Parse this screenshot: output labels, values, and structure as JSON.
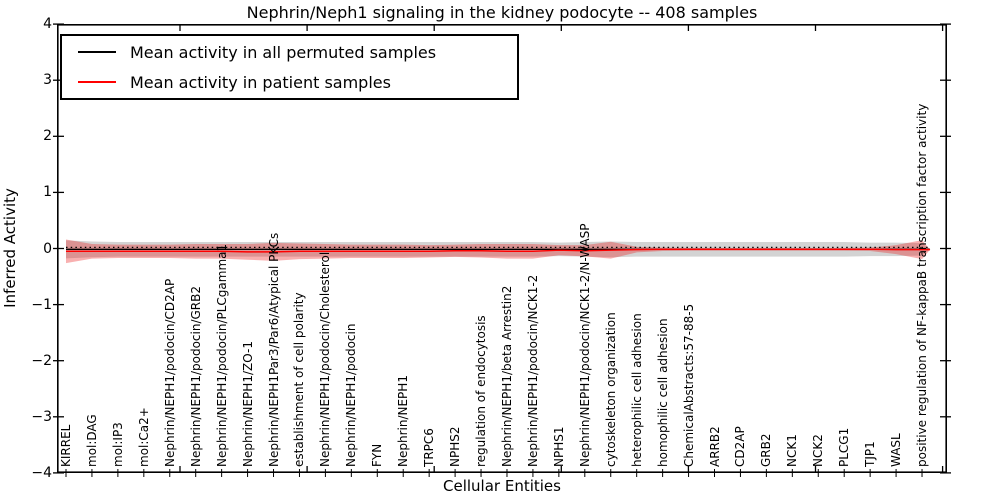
{
  "title": "Nephrin/Neph1 signaling in the kidney podocyte -- 408 samples",
  "axes": {
    "ylabel": "Inferred Activity",
    "xlabel": "Cellular Entities",
    "ylim": [
      -4,
      4
    ],
    "yticks": [
      {
        "value": 4,
        "label": "4"
      },
      {
        "value": 3,
        "label": "3"
      },
      {
        "value": 2,
        "label": "2"
      },
      {
        "value": 1,
        "label": "1"
      },
      {
        "value": 0,
        "label": "0"
      },
      {
        "value": -1,
        "label": "−1"
      },
      {
        "value": -2,
        "label": "−2"
      },
      {
        "value": -3,
        "label": "−3"
      },
      {
        "value": -4,
        "label": "−4"
      }
    ],
    "grid": false
  },
  "legend": {
    "position": "upper-left",
    "items": [
      {
        "label": "Mean activity in all permuted samples",
        "color": "#000000"
      },
      {
        "label": "Mean activity in patient samples",
        "color": "#ff0000"
      }
    ]
  },
  "chart_data": {
    "type": "line",
    "title": "Nephrin/Neph1 signaling in the kidney podocyte -- 408 samples",
    "xlabel": "Cellular Entities",
    "ylabel": "Inferred Activity",
    "ylim": [
      -4,
      4
    ],
    "legend_position": "upper-left",
    "grid": false,
    "categories": [
      "KIRREL",
      "mol:DAG",
      "mol:IP3",
      "mol:Ca2+",
      "Nephrin/NEPH1/podocin/CD2AP",
      "Nephrin/NEPH1/podocin/GRB2",
      "Nephrin/NEPH1/podocin/PLCgamma1",
      "Nephrin/NEPH1/ZO-1",
      "Nephrin/NEPH1Par3/Par6/Atypical PKCs",
      "establishment of cell polarity",
      "Nephrin/NEPH1/podocin/Cholesterol",
      "Nephrin/NEPH1/podocin",
      "FYN",
      "Nephrin/NEPH1",
      "TRPC6",
      "NPHS2",
      "regulation of endocytosis",
      "Nephrin/NEPH1/beta Arrestin2",
      "Nephrin/NEPH1/podocin/NCK1-2",
      "NPHS1",
      "Nephrin/NEPH1/podocin/NCK1-2/N-WASP",
      "cytoskeleton organization",
      "heterophilic cell adhesion",
      "homophilic cell adhesion",
      "ChemicalAbstracts:57-88-5",
      "ARRB2",
      "CD2AP",
      "GRB2",
      "NCK1",
      "NCK2",
      "PLCG1",
      "TJP1",
      "WASL",
      "positive regulation of NF-kappaB transcription factor activity"
    ],
    "series": [
      {
        "name": "Mean activity in all permuted samples",
        "line_color": "#000000",
        "band_fill": "rgba(140,140,140,0.38)",
        "values": [
          -0.015,
          -0.015,
          -0.015,
          -0.015,
          -0.015,
          -0.015,
          -0.015,
          -0.015,
          -0.015,
          -0.015,
          -0.015,
          -0.015,
          -0.015,
          -0.015,
          -0.015,
          -0.015,
          -0.015,
          -0.015,
          -0.015,
          -0.015,
          -0.015,
          -0.015,
          -0.015,
          -0.015,
          -0.015,
          -0.015,
          -0.015,
          -0.015,
          -0.015,
          -0.015,
          -0.015,
          -0.015,
          -0.015,
          -0.015
        ],
        "band_halfwidth": [
          0.16,
          0.14,
          0.13,
          0.13,
          0.13,
          0.13,
          0.13,
          0.13,
          0.13,
          0.13,
          0.13,
          0.13,
          0.13,
          0.13,
          0.13,
          0.13,
          0.13,
          0.13,
          0.13,
          0.12,
          0.13,
          0.14,
          0.13,
          0.13,
          0.13,
          0.13,
          0.13,
          0.13,
          0.13,
          0.13,
          0.13,
          0.12,
          0.12,
          0.11
        ]
      },
      {
        "name": "Mean activity in patient samples",
        "line_color": "#ff0000",
        "band_fill": "rgba(235,30,30,0.35)",
        "values": [
          -0.05,
          -0.05,
          -0.05,
          -0.05,
          -0.05,
          -0.05,
          -0.05,
          -0.06,
          -0.06,
          -0.05,
          -0.05,
          -0.05,
          -0.05,
          -0.05,
          -0.05,
          -0.04,
          -0.04,
          -0.05,
          -0.05,
          -0.03,
          -0.04,
          -0.03,
          -0.02,
          -0.015,
          -0.015,
          -0.015,
          -0.015,
          -0.015,
          -0.015,
          -0.015,
          -0.015,
          -0.015,
          -0.02,
          -0.02
        ],
        "band_halfwidth": [
          0.21,
          0.13,
          0.12,
          0.12,
          0.12,
          0.13,
          0.13,
          0.14,
          0.16,
          0.14,
          0.13,
          0.12,
          0.12,
          0.12,
          0.11,
          0.11,
          0.12,
          0.13,
          0.13,
          0.09,
          0.1,
          0.15,
          0.05,
          0.03,
          0.025,
          0.025,
          0.025,
          0.025,
          0.025,
          0.025,
          0.025,
          0.03,
          0.08,
          0.17
        ]
      }
    ],
    "reference_line": {
      "y": 0.02,
      "style": "dotted",
      "color": "#000000"
    }
  }
}
